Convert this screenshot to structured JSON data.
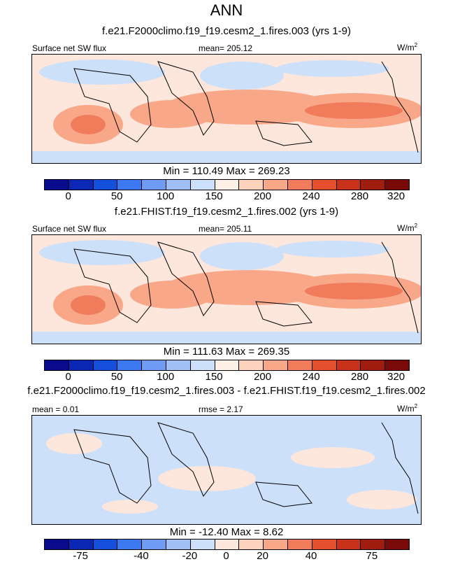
{
  "title": "ANN",
  "panels": [
    {
      "subtitle": "f.e21.F2000climo.f19_f19.cesm2_1.fires.003 (yrs 1-9)",
      "left_label": "Surface net SW flux",
      "center_label": "mean= 205.12",
      "units": "W/m",
      "units_sup": "2",
      "minmax": "Min = 110.49 Max = 269.23",
      "colorbar_ticks": [
        "0",
        "50",
        "100",
        "150",
        "200",
        "240",
        "280",
        "320"
      ]
    },
    {
      "subtitle": "f.e21.FHIST.f19_f19.cesm2_1.fires.002 (yrs 1-9)",
      "left_label": "Surface net SW flux",
      "center_label": "mean= 205.11",
      "units": "W/m",
      "units_sup": "2",
      "minmax": "Min = 111.63 Max = 269.35",
      "colorbar_ticks": [
        "0",
        "50",
        "100",
        "150",
        "200",
        "240",
        "280",
        "320"
      ]
    },
    {
      "subtitle": "f.e21.F2000climo.f19_f19.cesm2_1.fires.003 - f.e21.FHIST.f19_f19.cesm2_1.fires.002",
      "left_label": "mean =   0.01",
      "center_label": "rmse =   2.17",
      "units": "W/m",
      "units_sup": "2",
      "minmax": "Min = -12.40 Max =   8.62",
      "colorbar_ticks": [
        "-75",
        "-40",
        "-20",
        "0",
        "20",
        "40",
        "75"
      ]
    }
  ],
  "colors": {
    "abs_scale": [
      "#0a0a8c",
      "#0a28b4",
      "#1450dc",
      "#3c78f0",
      "#6e9cf5",
      "#a0c0f5",
      "#cde0fa",
      "#fdf0e6",
      "#fcd2bc",
      "#f8a888",
      "#f07c5c",
      "#e4502e",
      "#c8321a",
      "#a01e10",
      "#7a0a0a"
    ],
    "diff_scale": [
      "#0a0a8c",
      "#0a28b4",
      "#1450dc",
      "#3c78f0",
      "#6e9cf5",
      "#a0c0f5",
      "#cde0fa",
      "#fde6dc",
      "#fcd2bc",
      "#f8a888",
      "#f07c5c",
      "#e4502e",
      "#c8321a",
      "#a01e10",
      "#7a0a0a"
    ]
  }
}
